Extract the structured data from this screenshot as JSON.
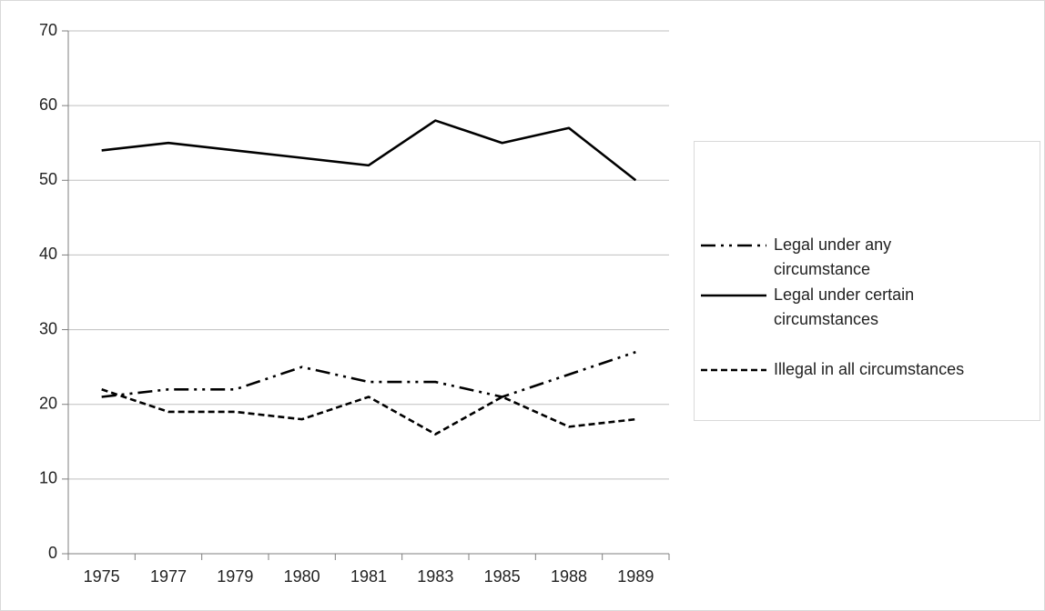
{
  "chart_data": {
    "type": "line",
    "categories": [
      "1975",
      "1977",
      "1979",
      "1980",
      "1981",
      "1983",
      "1985",
      "1988",
      "1989"
    ],
    "series": [
      {
        "name": "Legal under any circumstance",
        "color": "#000000",
        "dash": "dash-dot-dot",
        "values": [
          21,
          22,
          22,
          25,
          23,
          23,
          21,
          24,
          27
        ]
      },
      {
        "name": "Legal under certain circumstances",
        "color": "#000000",
        "dash": "solid",
        "values": [
          54,
          55,
          54,
          53,
          52,
          58,
          55,
          57,
          50
        ]
      },
      {
        "name": "Illegal in all circumstances",
        "color": "#000000",
        "dash": "dashed",
        "values": [
          22,
          19,
          19,
          18,
          21,
          16,
          21,
          17,
          18
        ]
      }
    ],
    "ylim": [
      0,
      70
    ],
    "yticks": [
      0,
      10,
      20,
      30,
      40,
      50,
      60,
      70
    ],
    "grid": true,
    "legend": "right"
  }
}
